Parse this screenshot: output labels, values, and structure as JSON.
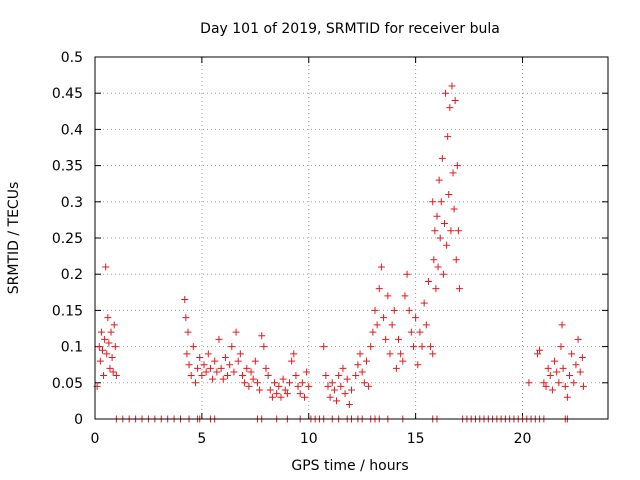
{
  "chart_data": {
    "type": "scatter",
    "title": "Day 101 of 2019, SRMTID for receiver bula",
    "xlabel": "GPS time / hours",
    "ylabel": "SRMTID / TECUs",
    "xlim": [
      0,
      24
    ],
    "ylim": [
      0,
      0.5
    ],
    "xticks": [
      0,
      5,
      10,
      15,
      20
    ],
    "xtick_labels": [
      "0",
      "5",
      "10",
      "15",
      "20"
    ],
    "yticks": [
      0,
      0.05,
      0.1,
      0.15,
      0.2,
      0.25,
      0.3,
      0.35,
      0.4,
      0.45,
      0.5
    ],
    "ytick_labels": [
      "0",
      "0.05",
      "0.1",
      "0.15",
      "0.2",
      "0.25",
      "0.3",
      "0.35",
      "0.4",
      "0.45",
      "0.5"
    ],
    "grid": true,
    "marker": "+",
    "series": [
      {
        "name": "SRMTID",
        "color": "#e41a1c",
        "points": [
          [
            0.1,
            0.045
          ],
          [
            0.2,
            0.1
          ],
          [
            0.25,
            0.08
          ],
          [
            0.3,
            0.12
          ],
          [
            0.35,
            0.095
          ],
          [
            0.4,
            0.06
          ],
          [
            0.45,
            0.11
          ],
          [
            0.5,
            0.21
          ],
          [
            0.55,
            0.09
          ],
          [
            0.6,
            0.14
          ],
          [
            0.65,
            0.105
          ],
          [
            0.7,
            0.07
          ],
          [
            0.75,
            0.12
          ],
          [
            0.8,
            0.085
          ],
          [
            0.85,
            0.065
          ],
          [
            0.9,
            0.13
          ],
          [
            0.95,
            0.1
          ],
          [
            1.0,
            0.06
          ],
          [
            1.0,
            0
          ],
          [
            1.3,
            0
          ],
          [
            1.6,
            0
          ],
          [
            1.9,
            0
          ],
          [
            2.2,
            0
          ],
          [
            2.5,
            0
          ],
          [
            2.8,
            0
          ],
          [
            3.1,
            0
          ],
          [
            3.4,
            0
          ],
          [
            3.7,
            0
          ],
          [
            4.0,
            0
          ],
          [
            4.2,
            0.165
          ],
          [
            4.25,
            0.14
          ],
          [
            4.3,
            0.09
          ],
          [
            4.35,
            0.12
          ],
          [
            4.4,
            0.075
          ],
          [
            4.5,
            0.06
          ],
          [
            4.6,
            0.1
          ],
          [
            4.7,
            0.05
          ],
          [
            4.8,
            0.07
          ],
          [
            4.9,
            0.085
          ],
          [
            5.0,
            0.06
          ],
          [
            5.1,
            0.075
          ],
          [
            5.2,
            0.065
          ],
          [
            5.3,
            0.09
          ],
          [
            5.4,
            0.07
          ],
          [
            5.5,
            0.055
          ],
          [
            5.6,
            0.08
          ],
          [
            5.7,
            0.065
          ],
          [
            5.8,
            0.11
          ],
          [
            5.9,
            0.07
          ],
          [
            6.0,
            0.055
          ],
          [
            6.1,
            0.085
          ],
          [
            6.2,
            0.06
          ],
          [
            6.3,
            0.075
          ],
          [
            6.4,
            0.1
          ],
          [
            6.5,
            0.065
          ],
          [
            6.6,
            0.12
          ],
          [
            6.7,
            0.08
          ],
          [
            6.8,
            0.09
          ],
          [
            6.9,
            0.06
          ],
          [
            7.0,
            0.05
          ],
          [
            7.1,
            0.07
          ],
          [
            7.2,
            0.045
          ],
          [
            7.3,
            0.065
          ],
          [
            7.4,
            0.055
          ],
          [
            7.5,
            0.08
          ],
          [
            7.6,
            0.05
          ],
          [
            7.7,
            0.04
          ],
          [
            7.8,
            0.115
          ],
          [
            7.9,
            0.1
          ],
          [
            8.0,
            0.07
          ],
          [
            8.1,
            0.06
          ],
          [
            8.2,
            0.04
          ],
          [
            8.3,
            0.03
          ],
          [
            8.4,
            0.05
          ],
          [
            8.5,
            0.035
          ],
          [
            8.6,
            0.045
          ],
          [
            8.7,
            0.03
          ],
          [
            8.8,
            0.055
          ],
          [
            8.9,
            0.04
          ],
          [
            9.0,
            0.035
          ],
          [
            9.1,
            0.05
          ],
          [
            9.2,
            0.08
          ],
          [
            9.3,
            0.09
          ],
          [
            9.4,
            0.06
          ],
          [
            9.5,
            0.045
          ],
          [
            9.6,
            0.035
          ],
          [
            9.7,
            0.05
          ],
          [
            9.8,
            0.03
          ],
          [
            9.9,
            0.065
          ],
          [
            10.0,
            0.045
          ],
          [
            4.4,
            0
          ],
          [
            4.8,
            0
          ],
          [
            4.9,
            0
          ],
          [
            5.4,
            0
          ],
          [
            5.6,
            0
          ],
          [
            7.6,
            0
          ],
          [
            7.8,
            0
          ],
          [
            8.5,
            0
          ],
          [
            9.0,
            0
          ],
          [
            9.6,
            0
          ],
          [
            10.1,
            0
          ],
          [
            10.3,
            0
          ],
          [
            10.5,
            0
          ],
          [
            10.7,
            0
          ],
          [
            11.1,
            0
          ],
          [
            11.4,
            0
          ],
          [
            11.8,
            0
          ],
          [
            12.0,
            0
          ],
          [
            12.3,
            0
          ],
          [
            12.5,
            0
          ],
          [
            12.9,
            0
          ],
          [
            13.1,
            0
          ],
          [
            13.3,
            0
          ],
          [
            13.7,
            0
          ],
          [
            14.4,
            0
          ],
          [
            10.7,
            0.1
          ],
          [
            10.8,
            0.06
          ],
          [
            10.9,
            0.045
          ],
          [
            11.0,
            0.03
          ],
          [
            11.1,
            0.05
          ],
          [
            11.2,
            0.04
          ],
          [
            11.3,
            0.025
          ],
          [
            11.4,
            0.06
          ],
          [
            11.5,
            0.045
          ],
          [
            11.6,
            0.07
          ],
          [
            11.7,
            0.035
          ],
          [
            11.8,
            0.055
          ],
          [
            11.9,
            0.02
          ],
          [
            12.0,
            0.04
          ],
          [
            12.2,
            0.06
          ],
          [
            12.3,
            0.075
          ],
          [
            12.4,
            0.09
          ],
          [
            12.5,
            0.065
          ],
          [
            12.6,
            0.05
          ],
          [
            12.7,
            0.08
          ],
          [
            12.8,
            0.045
          ],
          [
            12.9,
            0.1
          ],
          [
            13.0,
            0.12
          ],
          [
            13.1,
            0.15
          ],
          [
            13.2,
            0.13
          ],
          [
            13.3,
            0.18
          ],
          [
            13.4,
            0.21
          ],
          [
            13.5,
            0.14
          ],
          [
            13.6,
            0.11
          ],
          [
            13.7,
            0.17
          ],
          [
            13.8,
            0.09
          ],
          [
            13.9,
            0.13
          ],
          [
            14.0,
            0.15
          ],
          [
            14.1,
            0.07
          ],
          [
            14.2,
            0.11
          ],
          [
            14.3,
            0.09
          ],
          [
            14.4,
            0.08
          ],
          [
            14.5,
            0.17
          ],
          [
            14.6,
            0.2
          ],
          [
            14.7,
            0.15
          ],
          [
            14.8,
            0.12
          ],
          [
            14.9,
            0.1
          ],
          [
            15.0,
            0.14
          ],
          [
            15.1,
            0.075
          ],
          [
            15.2,
            0.12
          ],
          [
            15.3,
            0.1
          ],
          [
            15.4,
            0.16
          ],
          [
            15.5,
            0.13
          ],
          [
            15.6,
            0.19
          ],
          [
            15.7,
            0.1
          ],
          [
            15.8,
            0.09
          ],
          [
            15.8,
            0.3
          ],
          [
            15.85,
            0.22
          ],
          [
            15.9,
            0.26
          ],
          [
            15.95,
            0.18
          ],
          [
            16.0,
            0.28
          ],
          [
            16.05,
            0.21
          ],
          [
            16.1,
            0.33
          ],
          [
            16.15,
            0.25
          ],
          [
            16.2,
            0.3
          ],
          [
            16.25,
            0.36
          ],
          [
            16.3,
            0.2
          ],
          [
            16.35,
            0.27
          ],
          [
            16.4,
            0.45
          ],
          [
            16.45,
            0.24
          ],
          [
            16.5,
            0.39
          ],
          [
            16.55,
            0.31
          ],
          [
            16.6,
            0.43
          ],
          [
            16.65,
            0.26
          ],
          [
            16.7,
            0.46
          ],
          [
            16.75,
            0.34
          ],
          [
            16.8,
            0.29
          ],
          [
            16.85,
            0.44
          ],
          [
            16.9,
            0.22
          ],
          [
            16.95,
            0.35
          ],
          [
            17.0,
            0.26
          ],
          [
            17.05,
            0.18
          ],
          [
            15.8,
            0
          ],
          [
            16.0,
            0
          ],
          [
            17.2,
            0
          ],
          [
            17.4,
            0
          ],
          [
            17.6,
            0
          ],
          [
            17.8,
            0
          ],
          [
            18.0,
            0
          ],
          [
            18.2,
            0
          ],
          [
            18.4,
            0
          ],
          [
            18.6,
            0
          ],
          [
            18.8,
            0
          ],
          [
            19.0,
            0
          ],
          [
            19.2,
            0
          ],
          [
            19.4,
            0
          ],
          [
            19.6,
            0
          ],
          [
            19.8,
            0
          ],
          [
            20.0,
            0
          ],
          [
            20.2,
            0
          ],
          [
            20.4,
            0
          ],
          [
            20.6,
            0
          ],
          [
            20.8,
            0
          ],
          [
            21.0,
            0
          ],
          [
            22.0,
            0
          ],
          [
            22.1,
            0
          ],
          [
            20.3,
            0.05
          ],
          [
            20.7,
            0.09
          ],
          [
            20.8,
            0.095
          ],
          [
            21.0,
            0.05
          ],
          [
            21.1,
            0.045
          ],
          [
            21.2,
            0.07
          ],
          [
            21.3,
            0.06
          ],
          [
            21.4,
            0.04
          ],
          [
            21.5,
            0.08
          ],
          [
            21.6,
            0.065
          ],
          [
            21.7,
            0.05
          ],
          [
            21.8,
            0.1
          ],
          [
            21.85,
            0.13
          ],
          [
            21.9,
            0.07
          ],
          [
            22.0,
            0.045
          ],
          [
            22.1,
            0.03
          ],
          [
            22.2,
            0.06
          ],
          [
            22.3,
            0.09
          ],
          [
            22.4,
            0.05
          ],
          [
            22.5,
            0.075
          ],
          [
            22.6,
            0.11
          ],
          [
            22.7,
            0.065
          ],
          [
            22.8,
            0.085
          ],
          [
            22.85,
            0.045
          ]
        ]
      }
    ]
  }
}
